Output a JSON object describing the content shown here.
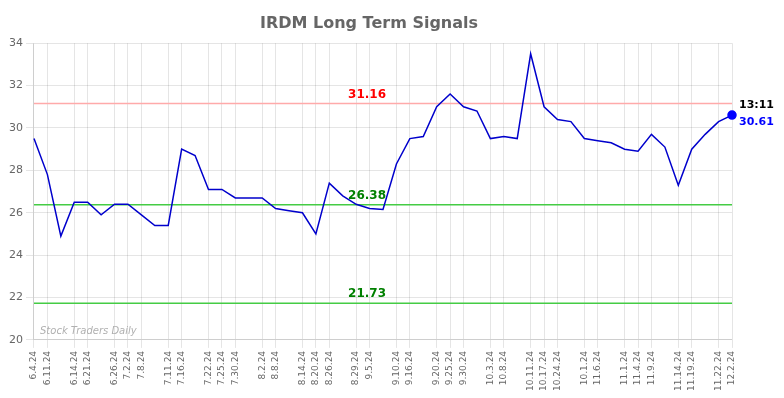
{
  "chart_data": {
    "type": "line",
    "title": "IRDM Long Term Signals",
    "categories": [
      "6.4.24",
      "6.11.24",
      null,
      "6.14.24",
      "6.21.24",
      null,
      "6.26.24",
      "7.2.24",
      "7.8.24",
      null,
      "7.11.24",
      "7.16.24",
      null,
      "7.22.24",
      "7.25.24",
      "7.30.24",
      null,
      "8.2.24",
      "8.8.24",
      null,
      "8.14.24",
      "8.20.24",
      "8.26.24",
      null,
      "8.29.24",
      "9.5.24",
      null,
      "9.10.24",
      "9.16.24",
      null,
      "9.20.24",
      "9.25.24",
      "9.30.24",
      null,
      "10.3.24",
      "10.8.24",
      null,
      "10.11.24",
      "10.17.24",
      "10.24.24",
      null,
      "10.1.24",
      "11.6.24",
      null,
      "11.1.24",
      "11.4.24",
      "11.9.24",
      null,
      "11.14.24",
      "11.19.24",
      null,
      "11.22.24",
      "12.2.24"
    ],
    "values": [
      29.5,
      27.8,
      24.9,
      26.5,
      26.5,
      25.9,
      26.4,
      26.4,
      25.9,
      25.4,
      25.4,
      29.0,
      28.7,
      27.1,
      27.1,
      26.7,
      26.7,
      26.7,
      26.2,
      26.1,
      26.0,
      25.0,
      27.4,
      26.8,
      26.4,
      26.2,
      26.15,
      28.3,
      29.5,
      29.6,
      31.0,
      31.6,
      31.0,
      30.8,
      29.5,
      29.6,
      29.5,
      33.5,
      31.0,
      30.4,
      30.3,
      29.5,
      29.4,
      29.3,
      29.0,
      28.9,
      29.7,
      29.1,
      27.3,
      29.0,
      29.7,
      30.3,
      30.61
    ],
    "color": "#0000cc",
    "ylim": [
      20,
      34
    ],
    "yticks": [
      20,
      22,
      24,
      26,
      28,
      30,
      32,
      34
    ],
    "grid": true,
    "hlines": [
      {
        "value": 31.16,
        "color": "#ffaaaa",
        "label": "31.16",
        "label_color": "red"
      },
      {
        "value": 26.38,
        "color": "#44cc44",
        "label": "26.38",
        "label_color": "green"
      },
      {
        "value": 21.73,
        "color": "#44cc44",
        "label": "21.73",
        "label_color": "green"
      }
    ],
    "last_point": {
      "color": "blue",
      "labels": [
        {
          "text": "13:11",
          "color": "black"
        },
        {
          "text": "30.61",
          "color": "blue"
        }
      ]
    },
    "watermark": {
      "text": "Stock Traders Daily",
      "color": "#b0b0b0"
    }
  }
}
